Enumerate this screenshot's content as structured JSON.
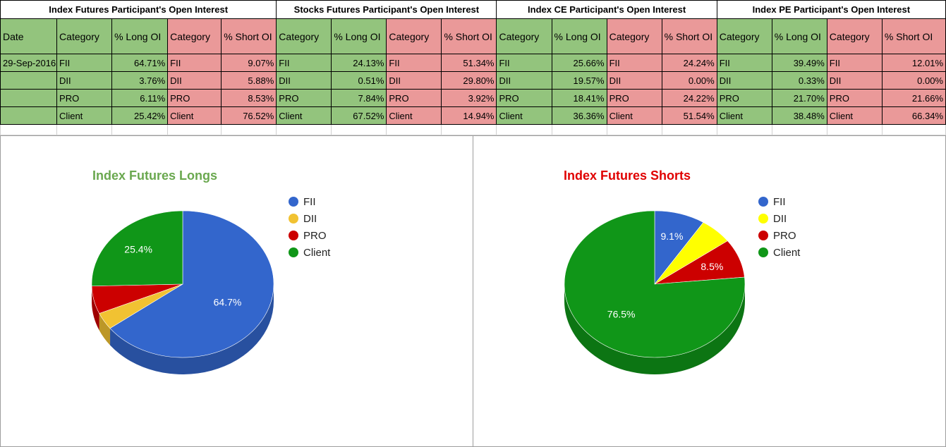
{
  "sections": [
    "Index Futures Participant's Open Interest",
    "Stocks Futures Participant's Open Interest",
    "Index CE Participant's Open Interest",
    "Index PE Participant's Open Interest"
  ],
  "headers": {
    "date": "Date",
    "category": "Category",
    "long_oi": "% Long OI",
    "short_oi": "% Short OI"
  },
  "date": "29-Sep-2016",
  "categories": [
    "FII",
    "DII",
    "PRO",
    "Client"
  ],
  "tables": [
    {
      "long": [
        "64.71%",
        "3.76%",
        "6.11%",
        "25.42%"
      ],
      "short": [
        "9.07%",
        "5.88%",
        "8.53%",
        "76.52%"
      ]
    },
    {
      "long": [
        "24.13%",
        "0.51%",
        "7.84%",
        "67.52%"
      ],
      "short": [
        "51.34%",
        "29.80%",
        "3.92%",
        "14.94%"
      ]
    },
    {
      "long": [
        "25.66%",
        "19.57%",
        "18.41%",
        "36.36%"
      ],
      "short": [
        "24.24%",
        "0.00%",
        "24.22%",
        "51.54%"
      ]
    },
    {
      "long": [
        "39.49%",
        "0.33%",
        "21.70%",
        "38.48%"
      ],
      "short": [
        "12.01%",
        "0.00%",
        "21.66%",
        "66.34%"
      ]
    }
  ],
  "colors": {
    "green_cell": "#93c47d",
    "red_cell": "#ea9999"
  },
  "chart_data": [
    {
      "type": "pie",
      "title": "Index Futures Longs",
      "title_color": "#6aa84f",
      "categories": [
        "FII",
        "DII",
        "PRO",
        "Client"
      ],
      "values": [
        64.71,
        3.76,
        6.11,
        25.42
      ],
      "labels": [
        "64.7%",
        "",
        "",
        "25.4%"
      ],
      "colors": [
        "#3366cc",
        "#f1c232",
        "#cc0000",
        "#109618"
      ],
      "legend_position": "right",
      "style": "3d"
    },
    {
      "type": "pie",
      "title": "Index Futures Shorts",
      "title_color": "#e00000",
      "categories": [
        "FII",
        "DII",
        "PRO",
        "Client"
      ],
      "values": [
        9.07,
        5.88,
        8.53,
        76.52
      ],
      "labels": [
        "9.1%",
        "",
        "8.5%",
        "76.5%"
      ],
      "colors": [
        "#3366cc",
        "#ffff00",
        "#cc0000",
        "#109618"
      ],
      "legend_position": "right",
      "style": "3d"
    }
  ]
}
